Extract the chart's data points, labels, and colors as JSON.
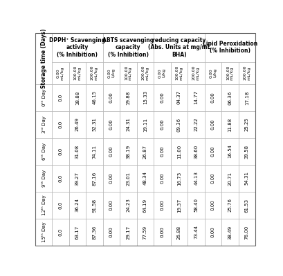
{
  "col_groups": [
    {
      "label": "DPPH⁺ Scavenging\nactivity\n(% Inhibition)",
      "span": 3
    },
    {
      "label": "ABTS scavenging\ncapacity\n(% Inhibition)",
      "span": 3
    },
    {
      "label": "reducing capacity\n(Abs. Units at mg/mL\nBHA)",
      "span": 3
    },
    {
      "label": "Lipid Peroxidation\n(% Inhibition)",
      "span": 3
    }
  ],
  "sub_cols": [
    "0.00\nmL/kg",
    "100.00\nmL/kg",
    "200.00\nmL/kg",
    "0.00\nL/kg",
    "100.00\nmL/kg",
    "200.00\nmL/kg",
    "0.00\nL/kg",
    "100.00\nmL/kg",
    "200.00\nmL/kg",
    "0.00\nL/kg",
    "100.00\nmL/kg",
    "200.00\nmL/kg"
  ],
  "row_labels": [
    "0ᵗʰ Day",
    "3ʳᵈ Day",
    "6ᵗʰ Day",
    "9ᵗʰ Day",
    "12ᵗʰ Day",
    "15ᵗʰ Day"
  ],
  "data": [
    [
      "0.0",
      "18.88",
      "46.15",
      "0.00",
      "19.88",
      "15.33",
      "0.00",
      "04.37",
      "14.77",
      "0.00",
      "06.36",
      "17.18"
    ],
    [
      "0.0",
      "26.49",
      "52.31",
      "0.00",
      "24.31",
      "19.11",
      "0.00",
      "09.36",
      "22.22",
      "0.00",
      "11.88",
      "25.25"
    ],
    [
      "0.0",
      "31.08",
      "74.11",
      "0.00",
      "38.19",
      "26.87",
      "0.00",
      "11.00",
      "38.60",
      "0.00",
      "16.54",
      "39.58"
    ],
    [
      "0.0",
      "39.27",
      "87.16",
      "0.00",
      "23.01",
      "48.34",
      "0.00",
      "16.73",
      "44.13",
      "0.00",
      "20.71",
      "54.31"
    ],
    [
      "0.0",
      "36.24",
      "91.58",
      "0.00",
      "24.23",
      "64.19",
      "0.00",
      "19.37",
      "58.40",
      "0.00",
      "25.76",
      "61.53"
    ],
    [
      "0.0",
      "63.17",
      "87.36",
      "0.00",
      "29.17",
      "77.59",
      "0.00",
      "26.88",
      "73.44",
      "0.00",
      "38.49",
      "76.00"
    ]
  ],
  "ylabel": "Storage time (Days)",
  "bg_color": "#ffffff",
  "cell_color": "#ffffff",
  "header_color": "#ffffff",
  "border_color": "#aaaaaa",
  "text_color": "#000000",
  "data_fontsize": 5.0,
  "header_fontsize": 5.5,
  "subcol_fontsize": 4.5,
  "rowlabel_fontsize": 5.0,
  "ylabel_fontsize": 5.5
}
